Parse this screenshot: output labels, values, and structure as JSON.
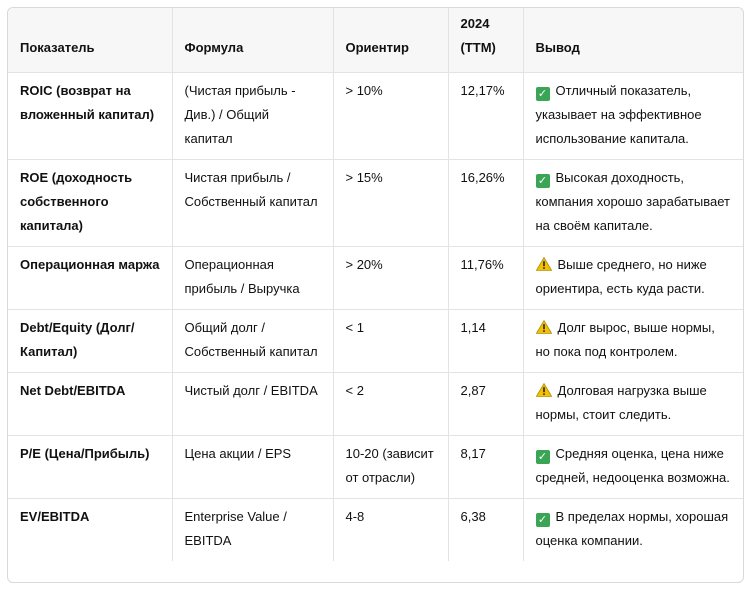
{
  "headers": [
    "Показатель",
    "Формула",
    "Ориентир",
    "2024 (TTM)",
    "Вывод"
  ],
  "rows": [
    {
      "name": "ROIC (возврат на вложенный капитал)",
      "formula": "(Чистая прибыль - Див.) / Общий капитал",
      "target": "> 10%",
      "value": "12,17%",
      "status": "check",
      "conclusion": "Отличный показатель, указывает на эффективное использование капитала."
    },
    {
      "name": "ROE (доходность собственного капитала)",
      "formula": "Чистая прибыль / Собственный капитал",
      "target": "> 15%",
      "value": "16,26%",
      "status": "check",
      "conclusion": "Высокая доходность, компания хорошо зарабатывает на своём капитале."
    },
    {
      "name": "Операционная маржа",
      "formula": "Операционная прибыль / Выручка",
      "target": "> 20%",
      "value": "11,76%",
      "status": "warning",
      "conclusion": "Выше среднего, но ниже ориентира, есть куда расти."
    },
    {
      "name": "Debt/Equity (Долг/Капитал)",
      "formula": "Общий долг / Собственный капитал",
      "target": "< 1",
      "value": "1,14",
      "status": "warning",
      "conclusion": "Долг вырос, выше нормы, но пока под контролем."
    },
    {
      "name": "Net Debt/EBITDA",
      "formula": "Чистый долг / EBITDA",
      "target": "< 2",
      "value": "2,87",
      "status": "warning",
      "conclusion": "Долговая нагрузка выше нормы, стоит следить."
    },
    {
      "name": "P/E (Цена/Прибыль)",
      "formula": "Цена акции / EPS",
      "target": "10-20 (зависит от отрасли)",
      "value": "8,17",
      "status": "check",
      "conclusion": "Средняя оценка, цена ниже средней, недооценка возможна."
    },
    {
      "name": "EV/EBITDA",
      "formula": "Enterprise Value / EBITDA",
      "target": "4-8",
      "value": "6,38",
      "status": "check",
      "conclusion": "В пределах нормы, хорошая оценка компании."
    }
  ],
  "colors": {
    "check": "#3aa655",
    "warning": "#f2c200"
  }
}
